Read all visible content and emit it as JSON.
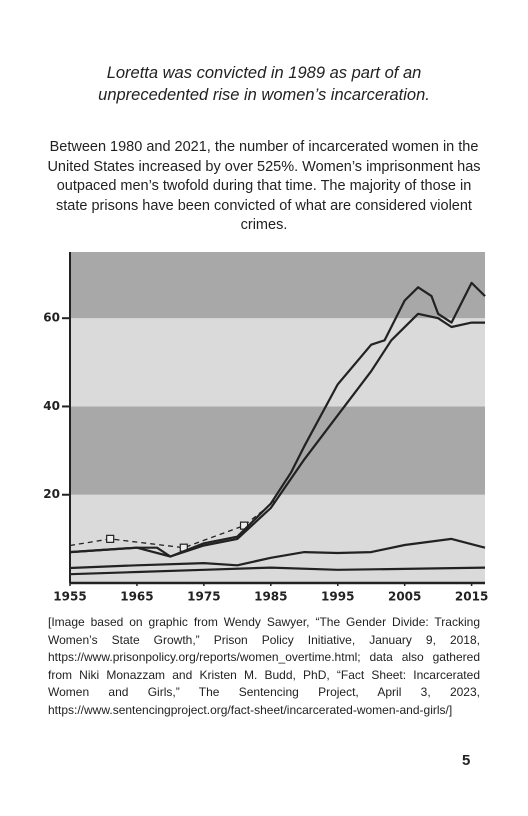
{
  "title": "Loretta was convicted in 1989 as part of an unprecedented rise in women’s incarceration.",
  "body": "Between 1980 and 2021, the number of incarcerated women in the United States increased by over 525%. Women’s imprisonment has outpaced men’s twofold during that time. The majority of those in state prisons have been convicted of what are considered violent crimes.",
  "chart_data": {
    "type": "line",
    "xlim": [
      1955,
      2017
    ],
    "xticks": [
      1955,
      1965,
      1975,
      1985,
      1995,
      2005,
      2015
    ],
    "ylim": [
      0,
      75
    ],
    "yticks": [
      20,
      40,
      60
    ],
    "band_colors": [
      "#dadada",
      "#a8a8a8"
    ],
    "series": [
      {
        "color": "#222222",
        "style": "dashed",
        "x": [
          1955,
          1961,
          1972,
          1981,
          1986
        ],
        "values": [
          8.5,
          10,
          8,
          13,
          19
        ]
      },
      {
        "color": "#222222",
        "style": "solid",
        "x": [
          1955,
          1960,
          1965,
          1968,
          1970,
          1975,
          1980,
          1985,
          1988,
          1990,
          1995,
          2000,
          2002,
          2005,
          2007,
          2009,
          2010,
          2012,
          2015,
          2017
        ],
        "values": [
          7,
          7.5,
          8,
          8,
          6,
          9,
          10.5,
          18,
          25,
          31,
          45,
          54,
          55,
          64,
          67,
          65,
          61,
          59,
          68,
          65
        ]
      },
      {
        "color": "#222222",
        "style": "solid",
        "x": [
          1955,
          1965,
          1970,
          1975,
          1980,
          1985,
          1990,
          1995,
          2000,
          2003,
          2007,
          2010,
          2012,
          2015,
          2017
        ],
        "values": [
          7,
          8,
          6,
          8.5,
          10,
          17,
          28,
          38,
          48,
          55,
          61,
          60,
          58,
          59,
          59
        ]
      },
      {
        "color": "#222222",
        "style": "solid",
        "x": [
          1955,
          1965,
          1975,
          1980,
          1985,
          1990,
          1995,
          2000,
          2005,
          2012,
          2017
        ],
        "values": [
          3.4,
          4,
          4.5,
          4,
          5.7,
          7,
          6.8,
          7,
          8.6,
          10,
          8
        ]
      },
      {
        "color": "#222222",
        "style": "solid",
        "x": [
          1955,
          1965,
          1975,
          1985,
          1995,
          2005,
          2017
        ],
        "values": [
          2,
          2.5,
          3,
          3.5,
          3,
          3.2,
          3.5
        ]
      }
    ]
  },
  "caption": "[Image based on graphic from Wendy Sawyer, “The Gender Divide: Tracking Women’s State Growth,” Prison Policy Initiative, January 9, 2018, https://www.prisonpolicy.org/reports/women_overtime.html; data also gathered from Niki Monazzam and Kristen M. Budd, PhD, “Fact Sheet: Incarcerated Women and Girls,” The Sentencing Project, April 3, 2023, https://www.sentencingproject.org/fact-sheet/incarcerated-women-and-girls/]",
  "page_number": "5"
}
